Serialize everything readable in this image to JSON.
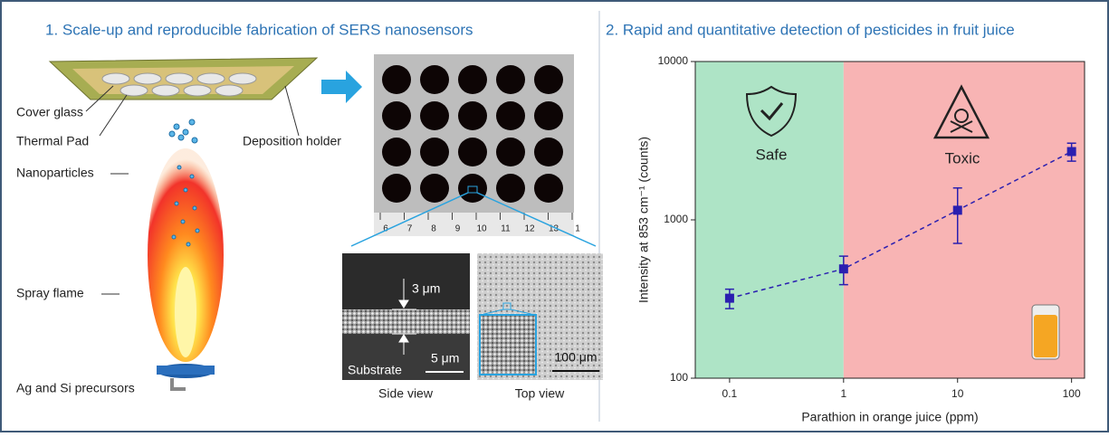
{
  "diagram": {
    "left_title": "1. Scale-up and reproducible fabrication of SERS nanosensors",
    "labels": {
      "cover_glass": "Cover glass",
      "thermal_pad": "Thermal Pad",
      "deposition_holder": "Deposition holder",
      "nanoparticles": "Nanoparticles",
      "spray_flame": "Spray flame",
      "precursors": "Ag and Si precursors"
    },
    "ruler": [
      "6",
      "7",
      "8",
      "9",
      "10",
      "11",
      "12",
      "13",
      "1"
    ],
    "side_view": {
      "thickness": "3 μm",
      "scale": "5 μm",
      "substrate": "Substrate",
      "caption": "Side view"
    },
    "top_view": {
      "scale": "100 μm",
      "caption": "Top view"
    }
  },
  "chart_data": {
    "type": "scatter",
    "title": "2. Rapid and quantitative detection of pesticides in fruit juice",
    "x_label": "Parathion in orange juice (ppm)",
    "y_label": "Intensity at 853 cm⁻¹ (counts)",
    "x": [
      0.1,
      1,
      10,
      100
    ],
    "values": [
      320,
      490,
      1150,
      2700
    ],
    "errors": [
      45,
      100,
      440,
      350
    ],
    "color": "#2a1fb0",
    "xlim": [
      0.05,
      130
    ],
    "ylim": [
      100,
      10000
    ],
    "xticks": [
      0.1,
      1,
      10,
      100
    ],
    "yticks": [
      100,
      1000,
      10000
    ],
    "log_x": true,
    "log_y": true,
    "threshold": 1,
    "zones": [
      {
        "label": "Safe",
        "color": "#aee4c6"
      },
      {
        "label": "Toxic",
        "color": "#f8b4b4"
      }
    ]
  }
}
